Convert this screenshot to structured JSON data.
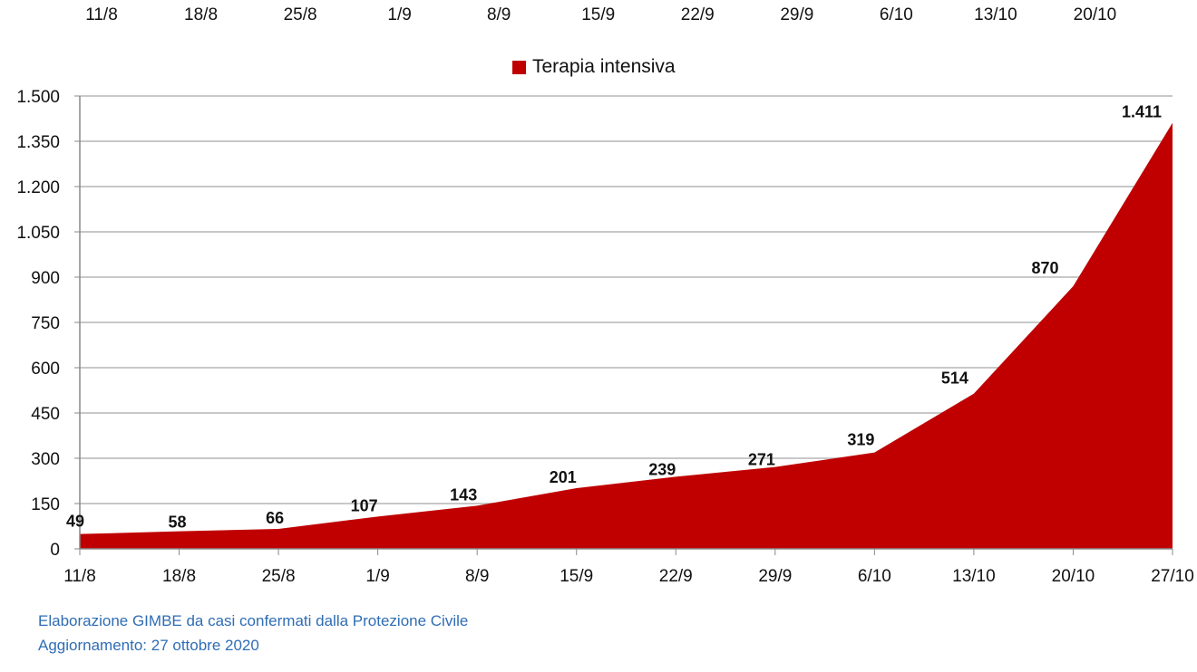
{
  "top_axis_labels": [
    "11/8",
    "18/8",
    "25/8",
    "1/9",
    "8/9",
    "15/9",
    "22/9",
    "29/9",
    "6/10",
    "13/10",
    "20/10"
  ],
  "chart_data": {
    "type": "area",
    "categories": [
      "11/8",
      "18/8",
      "25/8",
      "1/9",
      "8/9",
      "15/9",
      "22/9",
      "29/9",
      "6/10",
      "13/10",
      "20/10",
      "27/10"
    ],
    "series": [
      {
        "name": "Terapia intensiva",
        "values": [
          49,
          58,
          66,
          107,
          143,
          201,
          239,
          271,
          319,
          514,
          870,
          1411
        ],
        "color": "#c00000"
      }
    ],
    "data_labels": [
      "49",
      "58",
      "66",
      "107",
      "143",
      "201",
      "239",
      "271",
      "319",
      "514",
      "870",
      "1.411"
    ],
    "yticks": [
      0,
      150,
      300,
      450,
      600,
      750,
      900,
      1050,
      1200,
      1350,
      1500
    ],
    "ytick_labels": [
      "0",
      "150",
      "300",
      "450",
      "600",
      "750",
      "900",
      "1.050",
      "1.200",
      "1.350",
      "1.500"
    ],
    "ylim": [
      0,
      1500
    ],
    "grid": true,
    "legend_position": "top-center"
  },
  "footer": {
    "line1": "Elaborazione GIMBE da casi confermati dalla Protezione Civile",
    "line2": "Aggiornamento: 27 ottobre 2020"
  }
}
